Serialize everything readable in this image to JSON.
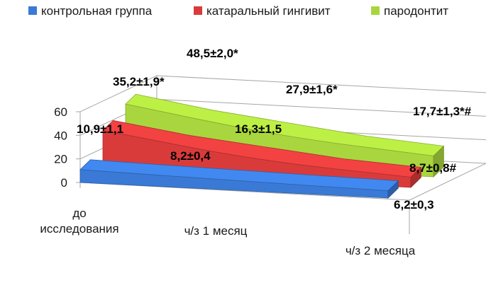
{
  "chart_data": {
    "type": "area",
    "categories": [
      "до исследования",
      "ч/з 1 месяц",
      "ч/з 2 месяца"
    ],
    "yticks": [
      "0",
      "20",
      "40",
      "60"
    ],
    "ylim": [
      0,
      60
    ],
    "series": [
      {
        "name": "контрольная группа",
        "color": "#3a7ad6",
        "values": [
          10.9,
          8.2,
          6.2
        ],
        "labels": [
          "10,9±1,1",
          "8,2±0,4",
          "6,2±0,3"
        ]
      },
      {
        "name": "катаральный гингивит",
        "color": "#d93b3b",
        "values": [
          35.2,
          16.3,
          8.7
        ],
        "labels": [
          "35,2±1,9*",
          "16,3±1,5",
          "8,7±0,8#"
        ]
      },
      {
        "name": "пародонтит",
        "color": "#a9d63e",
        "values": [
          48.5,
          27.9,
          17.7
        ],
        "labels": [
          "48,5±2,0*",
          "27,9±1,6*",
          "17,7±1,3*#"
        ]
      }
    ],
    "legend_position": "top",
    "grid": true
  }
}
